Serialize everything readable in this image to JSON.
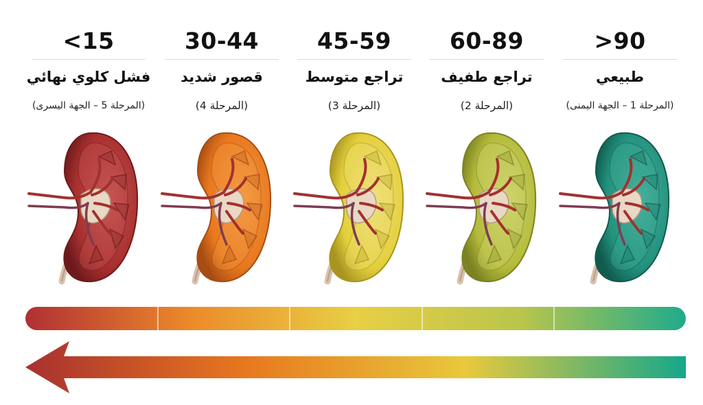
{
  "stages": [
    {
      "value": "<15",
      "label": "فشل كلوي نهائي",
      "note": "(المرحلة 5 – الجهة اليسرى)",
      "color": "#a8302f",
      "light": "#c65553",
      "dark": "#6e1a1c"
    },
    {
      "value": "30-44",
      "label": "قصور شديد",
      "note": "(المرحلة 4)",
      "color": "#e8781e",
      "light": "#f39a45",
      "dark": "#a74c12"
    },
    {
      "value": "45-59",
      "label": "تراجع متوسط",
      "note": "(المرحلة 3)",
      "color": "#e4cf3b",
      "light": "#efe07a",
      "dark": "#a89420"
    },
    {
      "value": "60-89",
      "label": "تراجع طفيف",
      "note": "(المرحلة 2)",
      "color": "#b4bb3a",
      "light": "#cfd46e",
      "dark": "#7b8222"
    },
    {
      "value": ">90",
      "label": "طبيعي",
      "note": "(المرحلة 1 – الجهة اليمنى)",
      "color": "#22917d",
      "light": "#45b09b",
      "dark": "#115b4e"
    }
  ],
  "scale_colors": [
    "#b12f35",
    "#ec8a2a",
    "#e8cf44",
    "#b9c54b",
    "#1fab8c"
  ],
  "arrow_colors": [
    "#a8302f",
    "#e8781e",
    "#e8c93c",
    "#16a78a"
  ]
}
